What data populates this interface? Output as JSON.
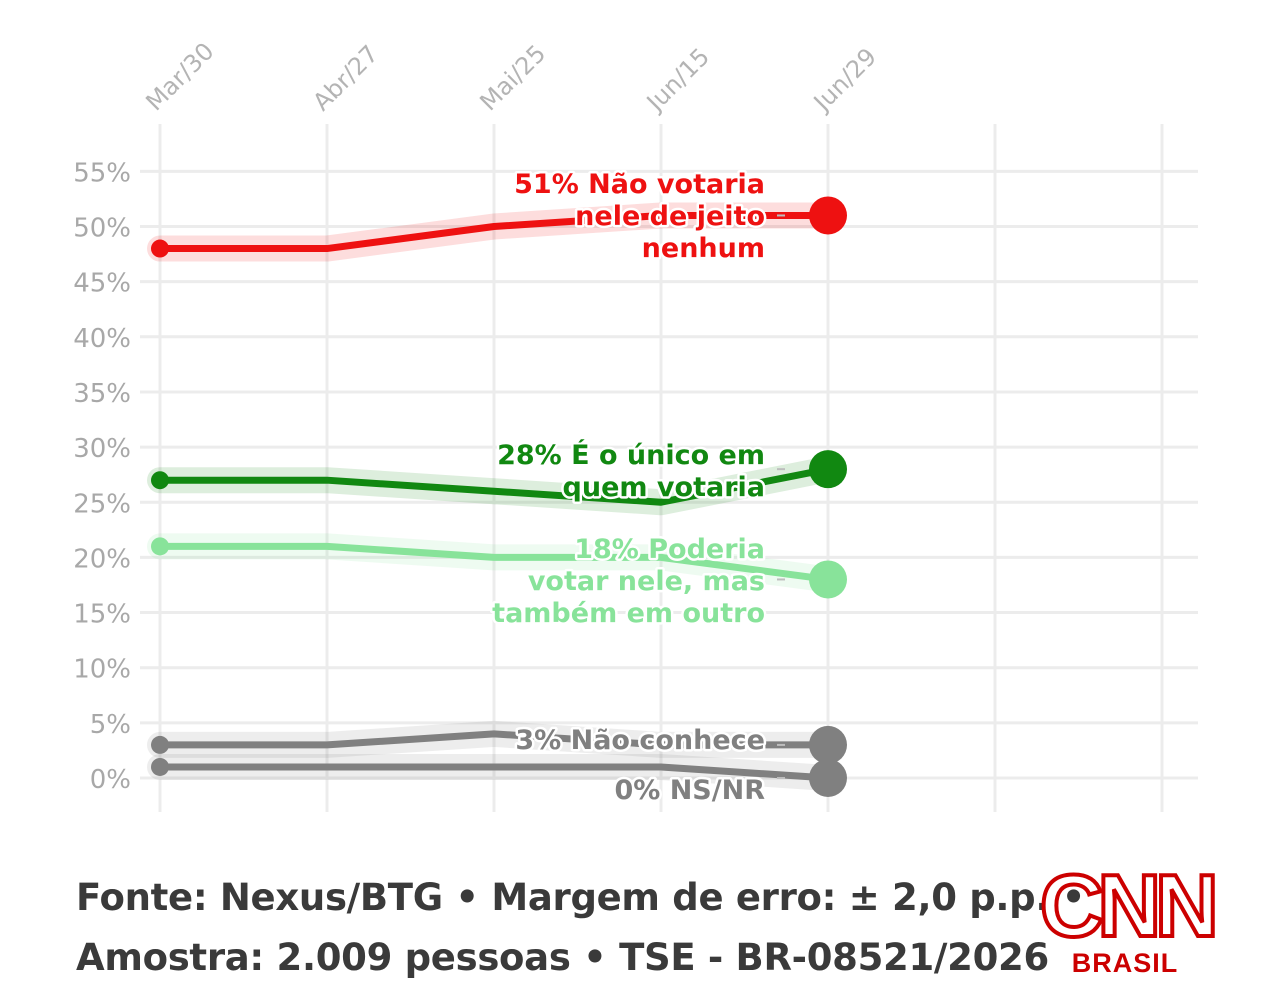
{
  "chart_data": {
    "type": "line",
    "title": "",
    "xlabel": "",
    "ylabel": "",
    "x": [
      "Mar/30",
      "Abr/27",
      "Mai/25",
      "Jun/15",
      "Jun/29"
    ],
    "x_ticks": [
      "Mar/30",
      "Abr/27",
      "Mai/25",
      "Jun/15",
      "Jun/29"
    ],
    "ylim": [
      0,
      55
    ],
    "y_ticks": [
      0,
      5,
      10,
      15,
      20,
      25,
      30,
      35,
      40,
      45,
      50,
      55
    ],
    "y_tick_labels": [
      "0%",
      "5%",
      "10%",
      "15%",
      "20%",
      "25%",
      "30%",
      "35%",
      "40%",
      "45%",
      "50%",
      "55%"
    ],
    "grid": true,
    "series": [
      {
        "id": "nao",
        "values": [
          48,
          48,
          50,
          51,
          51
        ],
        "color": "#ee1111",
        "label_lines": [
          "51% Não votaria",
          "nele de jeito",
          "nenhum"
        ]
      },
      {
        "id": "unico",
        "values": [
          27,
          27,
          26,
          25,
          28
        ],
        "color": "#118811",
        "label_lines": [
          "28% É o único em",
          "quem votaria"
        ]
      },
      {
        "id": "poderia",
        "values": [
          21,
          21,
          20,
          20,
          18
        ],
        "color": "#88e39a",
        "label_lines": [
          "18% Poderia",
          "votar nele, mas",
          "também em outro"
        ]
      },
      {
        "id": "naoconhece",
        "values": [
          3,
          3,
          4,
          3,
          3
        ],
        "color": "#808080",
        "label_lines": [
          "3% Não conhece"
        ]
      },
      {
        "id": "nsnr",
        "values": [
          1,
          1,
          1,
          1,
          0
        ],
        "color": "#808080",
        "label_lines": [
          "0% NS/NR"
        ]
      }
    ]
  },
  "footer": {
    "line1": "Fonte: Nexus/BTG • Margem de erro: ± 2,0 p.p. •",
    "line2": "Amostra: 2.009 pessoas • TSE - BR-08521/2026"
  },
  "logo": {
    "main": "CNN",
    "sub": "BRASIL"
  }
}
